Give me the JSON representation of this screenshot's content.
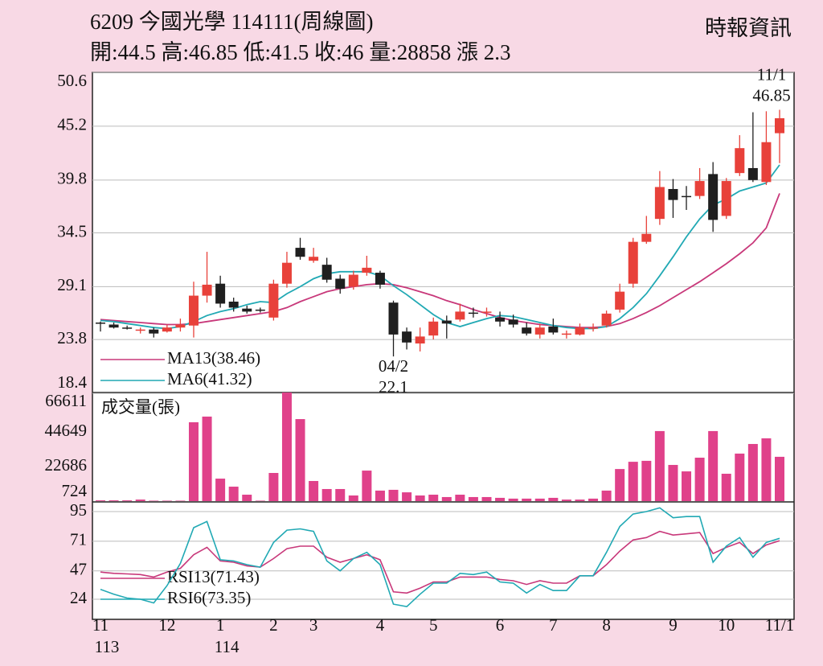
{
  "chart_data": {
    "type": "candlestick",
    "title": "6209  今國光學 114111(周線圖)",
    "subtitle": "開:44.5 高:46.85 低:41.5 收:46 量:28858 漲 2.3",
    "source": "時報資訊",
    "categories": [
      "11",
      null,
      null,
      null,
      null,
      "12",
      null,
      null,
      null,
      "1",
      null,
      null,
      null,
      "2",
      null,
      null,
      "3",
      null,
      null,
      null,
      null,
      "4",
      null,
      null,
      null,
      "5",
      null,
      null,
      null,
      null,
      "6",
      null,
      null,
      null,
      "7",
      null,
      null,
      null,
      "8",
      null,
      null,
      null,
      null,
      "9",
      null,
      null,
      null,
      "10",
      null,
      null,
      null,
      "11/1"
    ],
    "year_labels": [
      "113",
      null,
      null,
      null,
      null,
      null,
      null,
      null,
      null,
      "114",
      null,
      null,
      null,
      null,
      null,
      null,
      null,
      null,
      null,
      null,
      null,
      null,
      null,
      null,
      null,
      null,
      null,
      null,
      null,
      null,
      null,
      null,
      null,
      null,
      null,
      null,
      null,
      null,
      null,
      null,
      null,
      null,
      null,
      null,
      null,
      null,
      null,
      null,
      null,
      null,
      null,
      null
    ],
    "open": [
      25.5,
      25.3,
      25.0,
      24.8,
      24.8,
      24.6,
      25.0,
      25.2,
      28.2,
      29.4,
      27.6,
      26.9,
      26.8,
      26.0,
      29.4,
      33.0,
      31.7,
      31.3,
      29.9,
      29.1,
      30.5,
      30.5,
      27.5,
      24.6,
      23.4,
      24.2,
      25.7,
      25.8,
      26.5,
      26.5,
      26.0,
      25.8,
      25.0,
      24.3,
      25.1,
      24.3,
      24.3,
      25.0,
      25.2,
      26.8,
      29.4,
      33.6,
      35.9,
      38.9,
      38.2,
      38.2,
      40.4,
      36.2,
      40.5,
      41.0,
      39.6,
      44.5
    ],
    "high": [
      25.6,
      25.5,
      25.2,
      25.0,
      25.0,
      25.3,
      25.9,
      29.6,
      32.6,
      30.2,
      28.0,
      27.2,
      27.0,
      29.8,
      32.6,
      34.0,
      33.0,
      32.0,
      30.3,
      30.7,
      32.2,
      30.7,
      27.7,
      25.0,
      25.0,
      26.0,
      26.2,
      27.4,
      27.0,
      27.0,
      26.6,
      26.3,
      25.5,
      25.4,
      25.9,
      24.7,
      25.4,
      25.4,
      26.7,
      29.4,
      34.0,
      36.2,
      40.7,
      39.9,
      39.2,
      41.0,
      41.6,
      40.0,
      44.3,
      46.6,
      46.7,
      46.85
    ],
    "low": [
      24.6,
      24.9,
      24.8,
      24.4,
      24.0,
      24.5,
      24.6,
      24.0,
      27.5,
      27.0,
      26.6,
      26.4,
      26.5,
      25.7,
      29.0,
      31.8,
      31.5,
      29.5,
      28.4,
      28.8,
      30.2,
      28.9,
      22.1,
      22.8,
      22.6,
      23.8,
      23.9,
      25.6,
      26.0,
      26.1,
      25.1,
      25.0,
      24.2,
      23.9,
      24.3,
      23.9,
      24.2,
      24.6,
      25.0,
      26.5,
      29.0,
      33.4,
      35.3,
      36.0,
      36.8,
      37.9,
      34.6,
      35.9,
      40.2,
      39.6,
      39.3,
      41.5
    ],
    "close": [
      25.4,
      25.0,
      24.9,
      24.8,
      24.4,
      25.0,
      25.3,
      28.2,
      29.3,
      27.4,
      27.0,
      26.6,
      26.7,
      29.4,
      31.5,
      32.1,
      32.1,
      29.8,
      28.9,
      30.3,
      31.0,
      29.3,
      24.3,
      23.5,
      24.1,
      25.6,
      25.4,
      26.6,
      26.4,
      26.6,
      25.6,
      25.3,
      24.4,
      25.0,
      24.5,
      24.4,
      25.0,
      25.0,
      26.4,
      28.6,
      33.6,
      34.4,
      39.1,
      37.8,
      38.1,
      39.7,
      35.8,
      39.7,
      43.0,
      39.8,
      43.6,
      46
    ],
    "up_color": "#e8413a",
    "down_color": "#1f1f1f",
    "ylim": [
      18.4,
      50.6
    ],
    "yticks": [
      18.4,
      23.8,
      29.1,
      34.5,
      39.8,
      45.2,
      50.6
    ],
    "grid": true,
    "ma_series": [
      {
        "name": "MA13(38.46)",
        "color": "#c8387a",
        "values": [
          25.8,
          25.7,
          25.6,
          25.5,
          25.4,
          25.3,
          25.3,
          25.4,
          25.6,
          25.8,
          26.0,
          26.2,
          26.4,
          26.6,
          27.0,
          27.6,
          28.1,
          28.6,
          28.9,
          29.1,
          29.3,
          29.4,
          29.3,
          29.0,
          28.6,
          28.2,
          27.7,
          27.3,
          26.8,
          26.4,
          26.0,
          25.7,
          25.5,
          25.3,
          25.2,
          25.1,
          25.0,
          25.0,
          25.1,
          25.4,
          25.9,
          26.5,
          27.2,
          28.0,
          28.8,
          29.6,
          30.5,
          31.4,
          32.4,
          33.5,
          35.0,
          38.46
        ]
      },
      {
        "name": "MA6(41.32)",
        "color": "#21a9b4",
        "values": [
          25.7,
          25.6,
          25.4,
          25.2,
          25.0,
          24.9,
          25.1,
          25.6,
          26.2,
          26.6,
          26.9,
          27.3,
          27.6,
          27.5,
          28.4,
          29.1,
          29.9,
          30.4,
          30.6,
          30.6,
          30.6,
          30.2,
          29.2,
          28.3,
          27.3,
          26.3,
          25.5,
          25.1,
          25.5,
          25.9,
          26.2,
          26.1,
          25.8,
          25.5,
          25.2,
          25.0,
          24.9,
          24.9,
          25.1,
          25.9,
          27.0,
          28.4,
          30.2,
          32.1,
          34.1,
          35.9,
          37.3,
          37.9,
          38.7,
          39.1,
          39.5,
          41.32
        ]
      }
    ],
    "annotations": [
      {
        "label": "11/1",
        "value": 46.85,
        "at": "high"
      },
      {
        "label": "04/2",
        "value": 22.1,
        "at": "low"
      }
    ],
    "volume": {
      "label": "成交量(張)",
      "color": "#e0418a",
      "values": [
        1200,
        1200,
        1200,
        1700,
        1000,
        1000,
        1000,
        50800,
        54400,
        15000,
        9900,
        4800,
        1000,
        18600,
        69700,
        52800,
        13500,
        8400,
        8400,
        4300,
        20100,
        7400,
        7900,
        6300,
        4300,
        4800,
        3300,
        4800,
        3300,
        3300,
        2800,
        2300,
        2300,
        2300,
        2800,
        1700,
        1700,
        2300,
        7400,
        21100,
        25700,
        26300,
        45200,
        23700,
        19600,
        28300,
        45200,
        18100,
        30900,
        37000,
        40600,
        28858
      ],
      "ylim": [
        724,
        66611
      ],
      "yticks": [
        724,
        22686,
        44649,
        66611
      ]
    },
    "rsi": {
      "ylim": [
        9,
        102.2
      ],
      "yticks": [
        24,
        47,
        71,
        95
      ],
      "series": [
        {
          "name": "RSI13(71.43)",
          "color": "#c8387a",
          "values": [
            46,
            45,
            44.5,
            44,
            42,
            46,
            49,
            60,
            66,
            55,
            54,
            51,
            50,
            57,
            65,
            67,
            67,
            58,
            54,
            57,
            60,
            56,
            30,
            29,
            33,
            38,
            38,
            42,
            42,
            42,
            40,
            39,
            36,
            39,
            37,
            37,
            43,
            43,
            52,
            63,
            72,
            74,
            79,
            76,
            77,
            78,
            61,
            66,
            70,
            61,
            68,
            71.43
          ]
        },
        {
          "name": "RSI6(73.35)",
          "color": "#21a9b4",
          "values": [
            32,
            28,
            25,
            24,
            21,
            35,
            53,
            82,
            87,
            56,
            55,
            52,
            50,
            70,
            80,
            81,
            79,
            55,
            47,
            57,
            62,
            52,
            20,
            18,
            28,
            37,
            37,
            45,
            44,
            46,
            38,
            37,
            29,
            36,
            31,
            31,
            43,
            43,
            62,
            83,
            93,
            95,
            98,
            90,
            91,
            91,
            54,
            67,
            74,
            58,
            70,
            73.35
          ]
        }
      ]
    }
  }
}
